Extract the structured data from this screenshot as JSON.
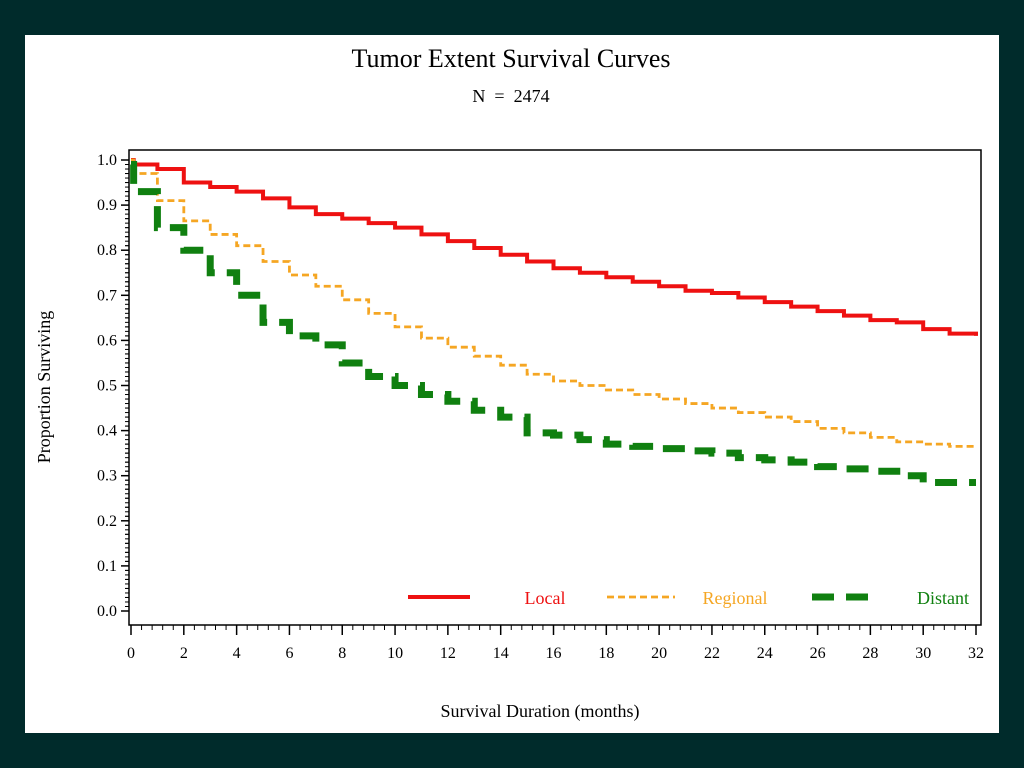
{
  "chart_data": {
    "type": "line",
    "title": "Tumor Extent Survival Curves",
    "subtitle": "N  =  2474",
    "xlabel": "Survival Duration (months)",
    "ylabel": "Proportion Surviving",
    "xlim": [
      0,
      32
    ],
    "ylim": [
      0,
      1
    ],
    "xticks": [
      0,
      2,
      4,
      6,
      8,
      10,
      12,
      14,
      16,
      18,
      20,
      22,
      24,
      26,
      28,
      30,
      32
    ],
    "yticks": [
      0.0,
      0.1,
      0.2,
      0.3,
      0.4,
      0.5,
      0.6,
      0.7,
      0.8,
      0.9,
      1.0
    ],
    "ytick_labels": [
      "0.0",
      "0.1",
      "0.2",
      "0.3",
      "0.4",
      "0.5",
      "0.6",
      "0.7",
      "0.8",
      "0.9",
      "1.0"
    ],
    "legend_position": "bottom-right",
    "grid": false,
    "series": [
      {
        "name": "Local",
        "color": "#ee1111",
        "dash": "solid",
        "points": [
          [
            0,
            1.0
          ],
          [
            0.1,
            0.99
          ],
          [
            1,
            0.98
          ],
          [
            2,
            0.95
          ],
          [
            3,
            0.94
          ],
          [
            4,
            0.93
          ],
          [
            5,
            0.915
          ],
          [
            6,
            0.895
          ],
          [
            7,
            0.88
          ],
          [
            8,
            0.87
          ],
          [
            9,
            0.86
          ],
          [
            10,
            0.85
          ],
          [
            11,
            0.835
          ],
          [
            12,
            0.82
          ],
          [
            13,
            0.805
          ],
          [
            14,
            0.79
          ],
          [
            15,
            0.775
          ],
          [
            16,
            0.76
          ],
          [
            17,
            0.75
          ],
          [
            18,
            0.74
          ],
          [
            19,
            0.73
          ],
          [
            20,
            0.72
          ],
          [
            21,
            0.71
          ],
          [
            22,
            0.705
          ],
          [
            23,
            0.695
          ],
          [
            24,
            0.685
          ],
          [
            25,
            0.675
          ],
          [
            26,
            0.665
          ],
          [
            27,
            0.655
          ],
          [
            28,
            0.645
          ],
          [
            29,
            0.64
          ],
          [
            30,
            0.625
          ],
          [
            31,
            0.615
          ],
          [
            32,
            0.61
          ]
        ]
      },
      {
        "name": "Regional",
        "color": "#f5a623",
        "dash": "dotted",
        "points": [
          [
            0,
            1.0
          ],
          [
            0.1,
            0.97
          ],
          [
            1,
            0.91
          ],
          [
            2,
            0.865
          ],
          [
            3,
            0.835
          ],
          [
            4,
            0.81
          ],
          [
            5,
            0.775
          ],
          [
            6,
            0.745
          ],
          [
            7,
            0.72
          ],
          [
            8,
            0.69
          ],
          [
            9,
            0.66
          ],
          [
            10,
            0.63
          ],
          [
            11,
            0.605
          ],
          [
            12,
            0.585
          ],
          [
            13,
            0.565
          ],
          [
            14,
            0.545
          ],
          [
            15,
            0.525
          ],
          [
            16,
            0.51
          ],
          [
            17,
            0.5
          ],
          [
            18,
            0.49
          ],
          [
            19,
            0.48
          ],
          [
            20,
            0.47
          ],
          [
            21,
            0.46
          ],
          [
            22,
            0.45
          ],
          [
            23,
            0.44
          ],
          [
            24,
            0.43
          ],
          [
            25,
            0.42
          ],
          [
            26,
            0.405
          ],
          [
            27,
            0.395
          ],
          [
            28,
            0.385
          ],
          [
            29,
            0.375
          ],
          [
            30,
            0.37
          ],
          [
            31,
            0.365
          ],
          [
            32,
            0.365
          ]
        ]
      },
      {
        "name": "Distant",
        "color": "#108010",
        "dash": "dashed",
        "points": [
          [
            0,
            0.99
          ],
          [
            0.1,
            0.93
          ],
          [
            1,
            0.85
          ],
          [
            2,
            0.8
          ],
          [
            3,
            0.75
          ],
          [
            4,
            0.7
          ],
          [
            5,
            0.64
          ],
          [
            6,
            0.61
          ],
          [
            7,
            0.59
          ],
          [
            8,
            0.55
          ],
          [
            9,
            0.52
          ],
          [
            10,
            0.5
          ],
          [
            11,
            0.48
          ],
          [
            12,
            0.465
          ],
          [
            13,
            0.445
          ],
          [
            14,
            0.43
          ],
          [
            15,
            0.395
          ],
          [
            16,
            0.39
          ],
          [
            17,
            0.38
          ],
          [
            18,
            0.37
          ],
          [
            19,
            0.365
          ],
          [
            20,
            0.36
          ],
          [
            21,
            0.355
          ],
          [
            22,
            0.35
          ],
          [
            23,
            0.34
          ],
          [
            24,
            0.335
          ],
          [
            25,
            0.33
          ],
          [
            26,
            0.32
          ],
          [
            27,
            0.315
          ],
          [
            28,
            0.31
          ],
          [
            29,
            0.3
          ],
          [
            30,
            0.285
          ],
          [
            31,
            0.285
          ],
          [
            32,
            0.285
          ]
        ]
      }
    ]
  }
}
